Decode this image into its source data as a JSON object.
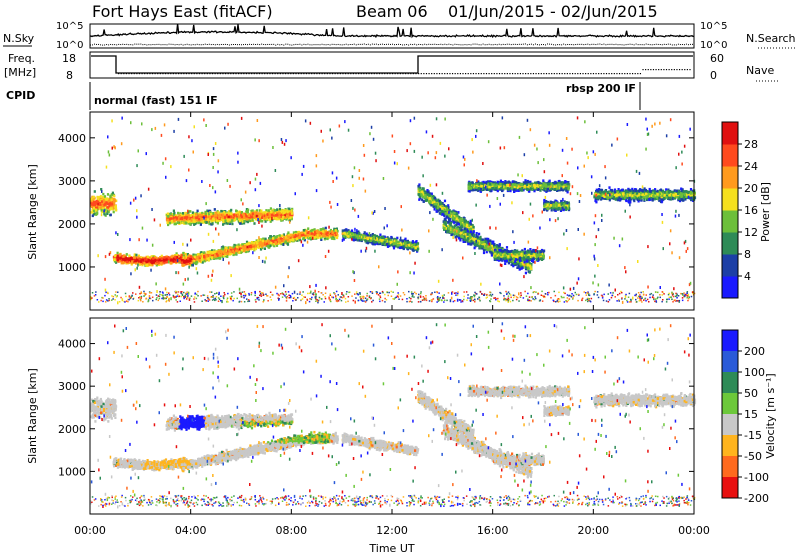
{
  "header": {
    "title": "Fort Hays East (fitACF)",
    "beam": "Beam 06",
    "date_range": "01/Jun/2015 - 02/Jun/2015"
  },
  "top_panel": {
    "nsky_label": "N.Sky",
    "nsearch_label": "N.Search",
    "left_ticks": [
      "10^5",
      "10^0"
    ],
    "right_ticks": [
      "10^5",
      "10^0"
    ],
    "freq_label_line1": "Freq.",
    "freq_label_line2": "[MHz]",
    "freq_ticks": [
      "18",
      "8"
    ],
    "nave_label": "Nave",
    "nave_ticks": [
      "60",
      "0"
    ],
    "cpid_label": "CPID",
    "cpid_1": "normal (fast) 151 IF",
    "cpid_2": "rbsp 200 IF"
  },
  "chart_data": [
    {
      "type": "heatmap",
      "name": "power",
      "ylabel": "Slant Range [km]",
      "y_ticks": [
        "1000",
        "2000",
        "3000",
        "4000"
      ],
      "colorbar_label": "Power [dB]",
      "colorbar_ticks": [
        "4",
        "8",
        "12",
        "16",
        "20",
        "24",
        "28"
      ],
      "colors": [
        "#1a1aff",
        "#1c3fa6",
        "#2e8b57",
        "#6cbf3a",
        "#f5e01e",
        "#ff9a1e",
        "#ff4a1e",
        "#e01010"
      ]
    },
    {
      "type": "heatmap",
      "name": "velocity",
      "ylabel": "Slant Range [km]",
      "y_ticks": [
        "1000",
        "2000",
        "3000",
        "4000"
      ],
      "colorbar_label": "Velocity [m s⁻¹]",
      "colorbar_ticks": [
        "200",
        "100",
        "50",
        "15",
        "-15",
        "-50",
        "-100",
        "-200"
      ],
      "colors": [
        "#1a1aff",
        "#2a5ad8",
        "#2e8b57",
        "#6cc83a",
        "#c8c8c8",
        "#ffb41e",
        "#ff6a1e",
        "#e81010"
      ]
    }
  ],
  "x_axis": {
    "ticks": [
      "00:00",
      "04:00",
      "08:00",
      "12:00",
      "16:00",
      "20:00",
      "00:00"
    ],
    "label": "Time UT"
  }
}
